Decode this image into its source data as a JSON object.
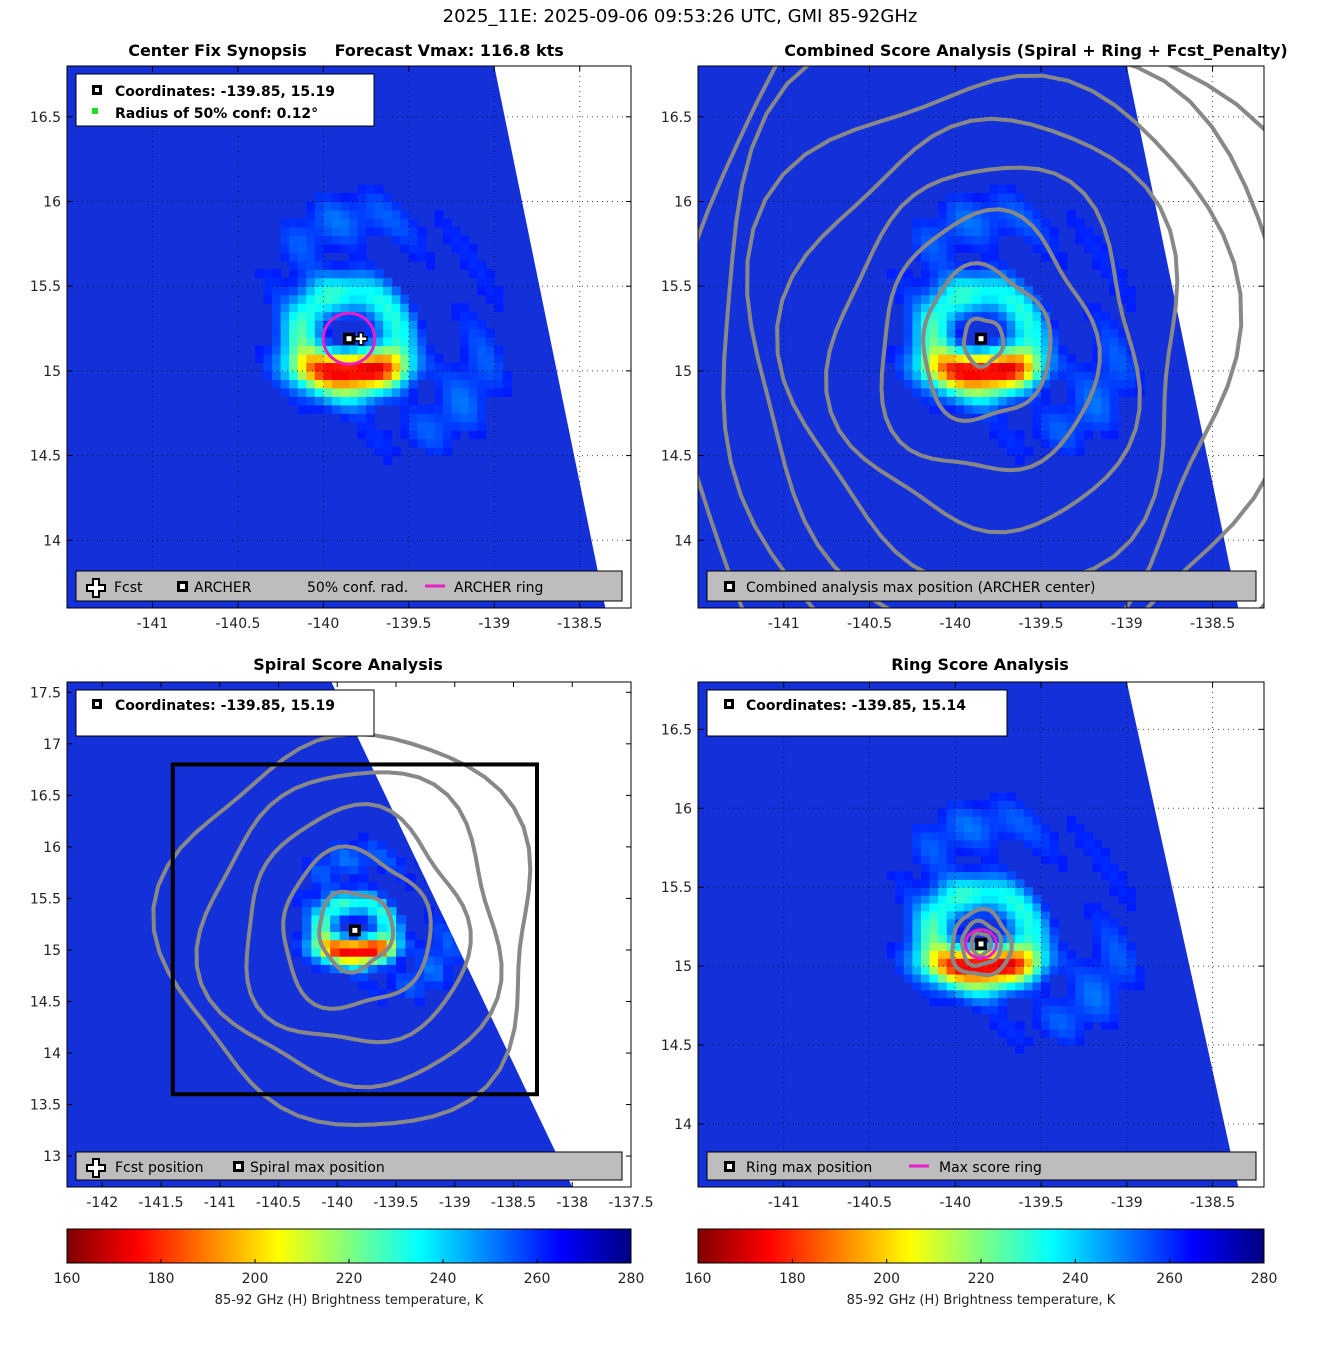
{
  "figure": {
    "suptitle": "2025_11E: 2025-09-06 09:53:26 UTC, GMI 85-92GHz"
  },
  "colors": {
    "archer_ring": "#e91ec8",
    "contour": "#888888",
    "conf_dot": "#22dd22",
    "legend_bar": "#bdbdbd"
  },
  "chart_data": [
    {
      "id": "center-fix",
      "type": "heatmap",
      "title": "Center Fix Synopsis     Forecast Vmax: 116.8 kts",
      "xlim": [
        -141.5,
        -138.2
      ],
      "ylim": [
        13.6,
        16.8
      ],
      "xticks": [
        -141,
        -140.5,
        -140,
        -139.5,
        -139,
        -138.5
      ],
      "xtick_labels": [
        "-141",
        "-140.5",
        "-140",
        "-139.5",
        "-139",
        "-138.5"
      ],
      "yticks": [
        14,
        14.5,
        15,
        15.5,
        16,
        16.5
      ],
      "ytick_labels": [
        "14",
        "14.5",
        "15",
        "15.5",
        "16",
        "16.5"
      ],
      "center": [
        -139.85,
        15.19
      ],
      "forecast": [
        -139.78,
        15.19
      ],
      "ring_radius_deg": 0.15,
      "info_lines": [
        "Coordinates: -139.85, 15.19",
        "Radius of 50% conf: 0.12°"
      ],
      "legend_items": [
        "Fcst",
        "ARCHER",
        "50% conf. rad.",
        "ARCHER ring"
      ],
      "swath_edge": [
        [
          -139.0,
          16.8
        ],
        [
          -138.35,
          13.6
        ]
      ],
      "contours": false,
      "grid": "dotted"
    },
    {
      "id": "combined",
      "type": "heatmap",
      "title": "Combined Score Analysis (Spiral + Ring + Fcst_Penalty)",
      "xlim": [
        -141.5,
        -138.2
      ],
      "ylim": [
        13.6,
        16.8
      ],
      "xticks": [
        -141,
        -140.5,
        -140,
        -139.5,
        -139,
        -138.5
      ],
      "xtick_labels": [
        "-141",
        "-140.5",
        "-140",
        "-139.5",
        "-139",
        "-138.5"
      ],
      "yticks": [
        14,
        14.5,
        15,
        15.5,
        16,
        16.5
      ],
      "ytick_labels": [
        "14",
        "14.5",
        "15",
        "15.5",
        "16",
        "16.5"
      ],
      "center": [
        -139.85,
        15.19
      ],
      "legend_items": [
        "Combined analysis max position (ARCHER center)"
      ],
      "swath_edge": [
        [
          -139.0,
          16.8
        ],
        [
          -138.35,
          13.6
        ]
      ],
      "contours": true,
      "contour_levels": 8,
      "grid": "dotted"
    },
    {
      "id": "spiral",
      "type": "heatmap",
      "title": "Spiral Score Analysis",
      "xlim": [
        -142.3,
        -137.5
      ],
      "ylim": [
        12.7,
        17.6
      ],
      "xticks": [
        -142,
        -141.5,
        -141,
        -140.5,
        -140,
        -139.5,
        -139,
        -138.5,
        -138,
        -137.5
      ],
      "xtick_labels": [
        "-142",
        "-141.5",
        "-141",
        "-140.5",
        "-140",
        "-139.5",
        "-139",
        "-138.5",
        "-138",
        "-137.5"
      ],
      "yticks": [
        13,
        13.5,
        14,
        14.5,
        15,
        15.5,
        16,
        16.5,
        17,
        17.5
      ],
      "ytick_labels": [
        "13",
        "13.5",
        "14",
        "14.5",
        "15",
        "15.5",
        "16",
        "16.5",
        "17",
        "17.5"
      ],
      "center": [
        -139.85,
        15.19
      ],
      "info_lines": [
        "Coordinates: -139.85, 15.19"
      ],
      "legend_items": [
        "Fcst position",
        "Spiral max position"
      ],
      "search_box": [
        -141.4,
        13.6,
        -138.3,
        16.8
      ],
      "swath_edge": [
        [
          -140.05,
          17.6
        ],
        [
          -138.0,
          12.7
        ]
      ],
      "contours": true,
      "contour_levels": 5,
      "grid": "none"
    },
    {
      "id": "ring",
      "type": "heatmap",
      "title": "Ring Score Analysis",
      "xlim": [
        -141.5,
        -138.2
      ],
      "ylim": [
        13.6,
        16.8
      ],
      "xticks": [
        -141,
        -140.5,
        -140,
        -139.5,
        -139,
        -138.5
      ],
      "xtick_labels": [
        "-141",
        "-140.5",
        "-140",
        "-139.5",
        "-139",
        "-138.5"
      ],
      "yticks": [
        14,
        14.5,
        15,
        15.5,
        16,
        16.5
      ],
      "ytick_labels": [
        "14",
        "14.5",
        "15",
        "15.5",
        "16",
        "16.5"
      ],
      "center": [
        -139.85,
        15.14
      ],
      "ring_radius_deg": 0.09,
      "info_lines": [
        "Coordinates: -139.85, 15.14"
      ],
      "legend_items": [
        "Ring max position",
        "Max score ring"
      ],
      "swath_edge": [
        [
          -139.0,
          16.8
        ],
        [
          -138.35,
          13.6
        ]
      ],
      "contours": true,
      "contour_levels": 3,
      "grid": "dotted"
    }
  ],
  "colorbars": [
    {
      "min": 160,
      "max": 280,
      "ticks": [
        160,
        180,
        200,
        220,
        240,
        260,
        280
      ],
      "tick_labels": [
        "160",
        "180",
        "200",
        "220",
        "240",
        "260",
        "280"
      ],
      "label": "85-92 GHz (H) Brightness temperature, K"
    },
    {
      "min": 160,
      "max": 280,
      "ticks": [
        160,
        180,
        200,
        220,
        240,
        260,
        280
      ],
      "tick_labels": [
        "160",
        "180",
        "200",
        "220",
        "240",
        "260",
        "280"
      ],
      "label": "85-92 GHz (H) Brightness temperature, K"
    }
  ]
}
